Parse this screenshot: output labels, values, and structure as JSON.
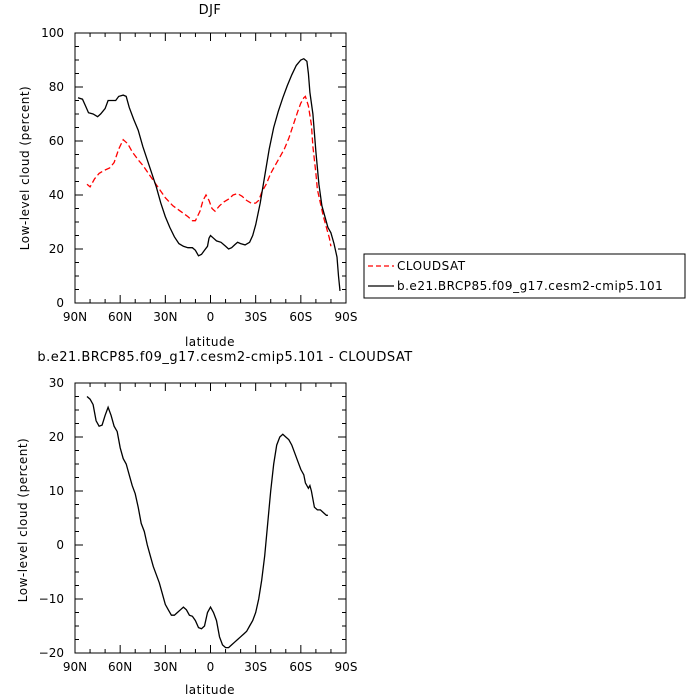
{
  "chart_data": [
    {
      "type": "line",
      "title": "DJF",
      "xlabel": "latitude",
      "ylabel": "Low-level cloud (percent)",
      "xlim": [
        90,
        -90
      ],
      "ylim": [
        0,
        100
      ],
      "x_ticks": [
        90,
        60,
        30,
        0,
        -30,
        -60,
        -90
      ],
      "x_tick_labels": [
        "90N",
        "60N",
        "30N",
        "0",
        "30S",
        "60S",
        "90S"
      ],
      "y_ticks": [
        0,
        20,
        40,
        60,
        80,
        100
      ],
      "y_tick_labels": [
        "0",
        "20",
        "40",
        "60",
        "80",
        "100"
      ],
      "legend_position": "right",
      "series": [
        {
          "name": "CLOUDSAT",
          "color": "#ff0000",
          "dash": "dashed",
          "points": [
            [
              82,
              44
            ],
            [
              80,
              43
            ],
            [
              77,
              46
            ],
            [
              74,
              48
            ],
            [
              71,
              49
            ],
            [
              67,
              50
            ],
            [
              64,
              52
            ],
            [
              61,
              57
            ],
            [
              58,
              60.5
            ],
            [
              55,
              59
            ],
            [
              52,
              56
            ],
            [
              48,
              53
            ],
            [
              45,
              51
            ],
            [
              40,
              47
            ],
            [
              35,
              43
            ],
            [
              30,
              39
            ],
            [
              25,
              36
            ],
            [
              20,
              34
            ],
            [
              15,
              32
            ],
            [
              12,
              30.5
            ],
            [
              10,
              30.5
            ],
            [
              7,
              34
            ],
            [
              5,
              38
            ],
            [
              3,
              40
            ],
            [
              1,
              38
            ],
            [
              -1,
              35
            ],
            [
              -3,
              34
            ],
            [
              -6,
              36
            ],
            [
              -9,
              37.5
            ],
            [
              -12,
              38.5
            ],
            [
              -15,
              40
            ],
            [
              -18,
              40.5
            ],
            [
              -21,
              39.5
            ],
            [
              -24,
              38
            ],
            [
              -27,
              37
            ],
            [
              -30,
              37
            ],
            [
              -32,
              38
            ],
            [
              -34,
              41
            ],
            [
              -37,
              44
            ],
            [
              -40,
              48
            ],
            [
              -43,
              51
            ],
            [
              -46,
              54
            ],
            [
              -49,
              57
            ],
            [
              -52,
              61
            ],
            [
              -55,
              66
            ],
            [
              -58,
              71
            ],
            [
              -60,
              74
            ],
            [
              -62,
              76
            ],
            [
              -63,
              76.5
            ],
            [
              -65,
              73
            ],
            [
              -67,
              66
            ],
            [
              -68,
              58
            ],
            [
              -70,
              48
            ],
            [
              -71,
              42
            ],
            [
              -73,
              37
            ],
            [
              -75,
              32
            ],
            [
              -77,
              28
            ],
            [
              -79,
              24
            ],
            [
              -80,
              21
            ]
          ]
        },
        {
          "name": "b.e21.BRCP85.f09_g17.cesm2-cmip5.101",
          "color": "#000000",
          "dash": "solid",
          "points": [
            [
              88,
              76
            ],
            [
              85,
              75.5
            ],
            [
              83,
              73
            ],
            [
              81,
              70.5
            ],
            [
              78,
              70
            ],
            [
              75,
              69
            ],
            [
              73,
              70
            ],
            [
              70,
              72
            ],
            [
              68,
              75
            ],
            [
              66,
              75
            ],
            [
              63,
              75
            ],
            [
              61,
              76.5
            ],
            [
              58,
              77
            ],
            [
              56,
              76.5
            ],
            [
              54,
              72.5
            ],
            [
              51,
              68
            ],
            [
              48,
              64
            ],
            [
              45,
              58
            ],
            [
              42,
              53
            ],
            [
              39,
              48
            ],
            [
              36,
              43
            ],
            [
              33,
              37
            ],
            [
              30,
              32
            ],
            [
              27,
              28
            ],
            [
              24,
              24.5
            ],
            [
              21,
              22
            ],
            [
              18,
              21
            ],
            [
              15,
              20.5
            ],
            [
              12,
              20.5
            ],
            [
              10,
              19.5
            ],
            [
              8,
              17.5
            ],
            [
              6,
              18
            ],
            [
              4,
              19.5
            ],
            [
              2,
              21
            ],
            [
              1,
              24
            ],
            [
              0,
              25
            ],
            [
              -2,
              24
            ],
            [
              -4,
              23
            ],
            [
              -7,
              22.5
            ],
            [
              -10,
              21
            ],
            [
              -12,
              20
            ],
            [
              -14,
              20.5
            ],
            [
              -16,
              21.5
            ],
            [
              -18,
              22.5
            ],
            [
              -20,
              22
            ],
            [
              -23,
              21.5
            ],
            [
              -26,
              22.5
            ],
            [
              -28,
              25
            ],
            [
              -30,
              29
            ],
            [
              -33,
              37
            ],
            [
              -36,
              47
            ],
            [
              -39,
              57
            ],
            [
              -42,
              65
            ],
            [
              -45,
              71
            ],
            [
              -48,
              76
            ],
            [
              -51,
              80.5
            ],
            [
              -54,
              84.5
            ],
            [
              -57,
              88
            ],
            [
              -60,
              90
            ],
            [
              -62,
              90.5
            ],
            [
              -64,
              89.5
            ],
            [
              -65,
              85
            ],
            [
              -66,
              78
            ],
            [
              -68,
              70
            ],
            [
              -70,
              56
            ],
            [
              -72,
              44
            ],
            [
              -74,
              36
            ],
            [
              -76,
              32
            ],
            [
              -78,
              28
            ],
            [
              -80,
              26
            ],
            [
              -82,
              22
            ],
            [
              -84,
              17
            ],
            [
              -85,
              10
            ],
            [
              -86,
              4.5
            ]
          ]
        }
      ]
    },
    {
      "type": "line",
      "title": "b.e21.BRCP85.f09_g17.cesm2-cmip5.101 - CLOUDSAT",
      "xlabel": "latitude",
      "ylabel": "Low-level cloud (percent)",
      "xlim": [
        90,
        -90
      ],
      "ylim": [
        -20,
        30
      ],
      "x_ticks": [
        90,
        60,
        30,
        0,
        -30,
        -60,
        -90
      ],
      "x_tick_labels": [
        "90N",
        "60N",
        "30N",
        "0",
        "30S",
        "60S",
        "90S"
      ],
      "y_ticks": [
        -20,
        -10,
        0,
        10,
        20,
        30
      ],
      "y_tick_labels": [
        "−20",
        "−10",
        "0",
        "10",
        "20",
        "30"
      ],
      "series": [
        {
          "color": "#000000",
          "dash": "solid",
          "points": [
            [
              82,
              27.5
            ],
            [
              80,
              27
            ],
            [
              78,
              26
            ],
            [
              76,
              23
            ],
            [
              74,
              22
            ],
            [
              72,
              22.2
            ],
            [
              70,
              24
            ],
            [
              68,
              25.5
            ],
            [
              66,
              24
            ],
            [
              64,
              22
            ],
            [
              62,
              21
            ],
            [
              60,
              18
            ],
            [
              58,
              16
            ],
            [
              56,
              15
            ],
            [
              54,
              13
            ],
            [
              52,
              11
            ],
            [
              50,
              9.5
            ],
            [
              48,
              7
            ],
            [
              46,
              4
            ],
            [
              44,
              2.5
            ],
            [
              42,
              0
            ],
            [
              40,
              -2
            ],
            [
              38,
              -4
            ],
            [
              36,
              -5.5
            ],
            [
              34,
              -7
            ],
            [
              32,
              -9
            ],
            [
              30,
              -11
            ],
            [
              28,
              -12
            ],
            [
              26,
              -13
            ],
            [
              24,
              -13
            ],
            [
              22,
              -12.5
            ],
            [
              20,
              -12
            ],
            [
              18,
              -11.5
            ],
            [
              16,
              -12
            ],
            [
              14,
              -13
            ],
            [
              12,
              -13.2
            ],
            [
              10,
              -14
            ],
            [
              8,
              -15.3
            ],
            [
              6,
              -15.5
            ],
            [
              4,
              -15
            ],
            [
              2,
              -12.5
            ],
            [
              0,
              -11.5
            ],
            [
              -2,
              -12.5
            ],
            [
              -4,
              -14
            ],
            [
              -6,
              -17
            ],
            [
              -8,
              -18.5
            ],
            [
              -10,
              -19
            ],
            [
              -12,
              -19
            ],
            [
              -14,
              -18.5
            ],
            [
              -16,
              -18
            ],
            [
              -18,
              -17.5
            ],
            [
              -20,
              -17
            ],
            [
              -22,
              -16.5
            ],
            [
              -24,
              -16
            ],
            [
              -26,
              -15
            ],
            [
              -28,
              -14
            ],
            [
              -30,
              -12.5
            ],
            [
              -32,
              -10
            ],
            [
              -34,
              -6.5
            ],
            [
              -36,
              -2
            ],
            [
              -38,
              4
            ],
            [
              -40,
              10
            ],
            [
              -42,
              15
            ],
            [
              -44,
              18.5
            ],
            [
              -46,
              20
            ],
            [
              -48,
              20.5
            ],
            [
              -50,
              20
            ],
            [
              -52,
              19.5
            ],
            [
              -54,
              18.5
            ],
            [
              -56,
              17
            ],
            [
              -58,
              15.5
            ],
            [
              -60,
              14
            ],
            [
              -62,
              13
            ],
            [
              -63,
              11.5
            ],
            [
              -65,
              10.5
            ],
            [
              -66,
              11
            ],
            [
              -67,
              10
            ],
            [
              -69,
              7
            ],
            [
              -71,
              6.5
            ],
            [
              -73,
              6.5
            ],
            [
              -75,
              6
            ],
            [
              -77,
              5.5
            ],
            [
              -78,
              5.5
            ]
          ]
        }
      ]
    }
  ]
}
